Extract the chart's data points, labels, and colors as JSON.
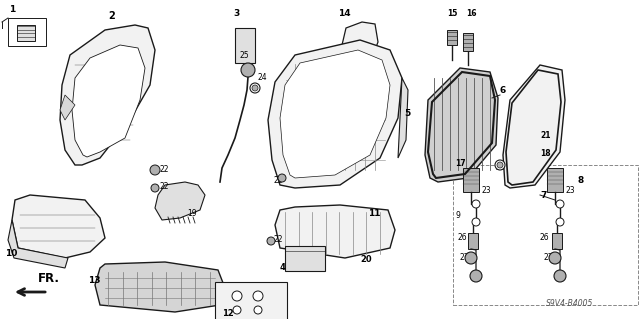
{
  "background_color": "#ffffff",
  "diagram_code": "S9V4-B4005",
  "fr_label": "FR.",
  "line_color": "#1a1a1a",
  "text_color": "#000000",
  "gray_fill": "#e0e0e0",
  "dark_fill": "#b0b0b0",
  "light_fill": "#f2f2f2"
}
